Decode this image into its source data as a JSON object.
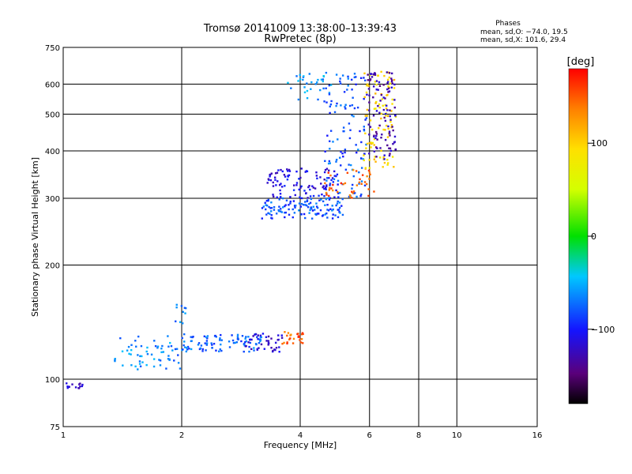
{
  "chart_data": {
    "type": "scatter",
    "title": "Tromsø 20141009 13:38:00–13:39:43",
    "subtitle": "RwPretec (8p)",
    "xlabel": "Frequency [MHz]",
    "ylabel": "Stationary phase Virtual Height [km]",
    "x_scale": "log",
    "y_scale": "log",
    "xlim": [
      1,
      16
    ],
    "ylim": [
      75,
      750
    ],
    "x_ticks": [
      1,
      2,
      4,
      6,
      8,
      10,
      16
    ],
    "x_tick_labels": [
      "1",
      "2",
      "4",
      "6",
      "8",
      "10",
      "16"
    ],
    "y_ticks": [
      75,
      100,
      200,
      300,
      400,
      500,
      600,
      750
    ],
    "y_tick_labels": [
      "75",
      "100",
      "200",
      "300",
      "400",
      "500",
      "600",
      "750"
    ],
    "grid": true,
    "color_by": "phase [deg]",
    "colorbar": {
      "label": "[deg]",
      "range": [
        -180,
        180
      ],
      "ticks": [
        100,
        0,
        -100
      ],
      "tick_labels": [
        "100",
        "0",
        "−100"
      ],
      "colormap": "rainbow"
    },
    "legend": {
      "title": "Phases",
      "lines": [
        "mean, sd,O: −74.0, 19.5",
        "mean, sd,X: 101.6, 29.4"
      ],
      "position": "top-right"
    },
    "traces": [
      {
        "freq_range": [
          1.0,
          1.12
        ],
        "height_range": [
          94,
          98
        ],
        "phase": -120,
        "n": 14
      },
      {
        "freq_range": [
          1.35,
          2.0
        ],
        "height_range": [
          106,
          130
        ],
        "phase": -65,
        "n": 60
      },
      {
        "freq_range": [
          1.9,
          2.05
        ],
        "height_range": [
          140,
          158
        ],
        "phase": -70,
        "n": 10
      },
      {
        "freq_range": [
          2.0,
          3.2
        ],
        "height_range": [
          118,
          132
        ],
        "phase": -75,
        "n": 90
      },
      {
        "freq_range": [
          2.9,
          3.6
        ],
        "height_range": [
          118,
          132
        ],
        "phase": -120,
        "n": 40
      },
      {
        "freq_range": [
          3.6,
          4.1
        ],
        "height_range": [
          124,
          134
        ],
        "phase": 150,
        "n": 25
      },
      {
        "freq_range": [
          3.2,
          5.2
        ],
        "height_range": [
          265,
          300
        ],
        "phase": -80,
        "n": 120
      },
      {
        "freq_range": [
          3.3,
          5.0
        ],
        "height_range": [
          300,
          360
        ],
        "phase": -110,
        "n": 100
      },
      {
        "freq_range": [
          3.7,
          4.8
        ],
        "height_range": [
          545,
          640
        ],
        "phase": -60,
        "n": 30
      },
      {
        "freq_range": [
          4.6,
          5.9
        ],
        "height_range": [
          300,
          650
        ],
        "phase": -80,
        "n": 120
      },
      {
        "freq_range": [
          4.6,
          6.2
        ],
        "height_range": [
          300,
          360
        ],
        "phase": 150,
        "n": 40
      },
      {
        "freq_range": [
          5.8,
          7.0
        ],
        "height_range": [
          360,
          650
        ],
        "phase": 100,
        "n": 90
      },
      {
        "freq_range": [
          5.9,
          7.0
        ],
        "height_range": [
          380,
          650
        ],
        "phase": -130,
        "n": 100
      }
    ]
  }
}
